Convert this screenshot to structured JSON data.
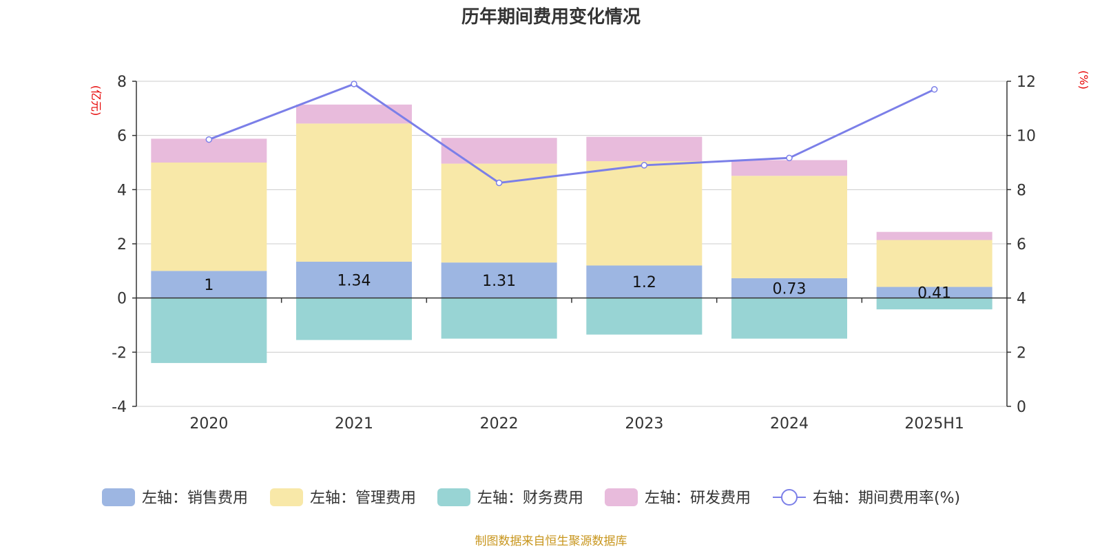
{
  "chart_data": {
    "type": "bar",
    "title": "历年期间费用变化情况",
    "categories": [
      "2020",
      "2021",
      "2022",
      "2023",
      "2024",
      "2025H1"
    ],
    "left_axis": {
      "unit": "(亿元)",
      "ylim": [
        -4,
        8
      ],
      "ticks": [
        8,
        6,
        4,
        2,
        0,
        -2,
        -4
      ]
    },
    "right_axis": {
      "unit": "(%)",
      "ylim": [
        0,
        12
      ],
      "ticks": [
        12,
        10,
        8,
        6,
        4,
        2,
        0
      ]
    },
    "series": [
      {
        "name": "左轴：销售费用",
        "type": "bar",
        "axis": "left",
        "stack": true,
        "color": "#9db6e2",
        "values": [
          1.0,
          1.34,
          1.31,
          1.2,
          0.73,
          0.41
        ],
        "labels": [
          "1",
          "1.34",
          "1.31",
          "1.2",
          "0.73",
          "0.41"
        ]
      },
      {
        "name": "左轴：管理费用",
        "type": "bar",
        "axis": "left",
        "stack": true,
        "color": "#f8e8a8",
        "values": [
          4.0,
          5.1,
          3.65,
          3.85,
          3.78,
          1.73
        ]
      },
      {
        "name": "左轴：财务费用",
        "type": "bar",
        "axis": "left",
        "stack": true,
        "color": "#98d4d4",
        "values": [
          -2.4,
          -1.55,
          -1.5,
          -1.35,
          -1.5,
          -0.42
        ]
      },
      {
        "name": "左轴：研发费用",
        "type": "bar",
        "axis": "left",
        "stack": true,
        "color": "#e8bbdc",
        "values": [
          0.88,
          0.7,
          0.95,
          0.9,
          0.58,
          0.3
        ]
      },
      {
        "name": "右轴：期间费用率(%)",
        "type": "line",
        "axis": "right",
        "color": "#7b7fe8",
        "values": [
          9.85,
          11.9,
          8.25,
          8.9,
          9.17,
          11.7
        ]
      }
    ],
    "grid": true,
    "legend": "bottom",
    "source": "制图数据来自恒生聚源数据库"
  }
}
